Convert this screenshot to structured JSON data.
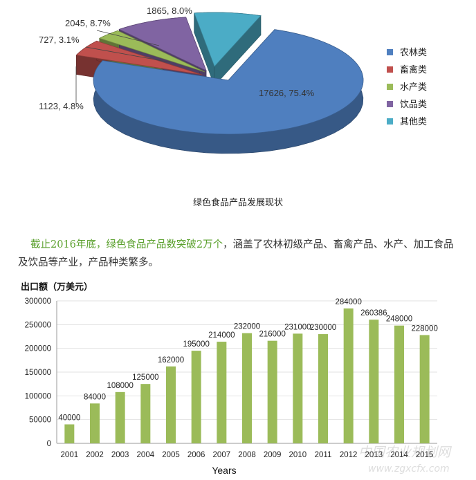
{
  "chart_data": [
    {
      "type": "pie",
      "title": "",
      "legend_position": "right",
      "slices": [
        {
          "name": "农林类",
          "value": 17626,
          "label": "17626, 75.4%",
          "color": "#4f7fbf"
        },
        {
          "name": "畜禽类",
          "value": 1123,
          "label": "1123, 4.8%",
          "color": "#c0504d"
        },
        {
          "name": "水产类",
          "value": 727,
          "label": "727, 3.1%",
          "color": "#9bbb59"
        },
        {
          "name": "饮品类",
          "value": 2045,
          "label": "2045, 8.7%",
          "color": "#8064a2"
        },
        {
          "name": "其他类",
          "value": 1865,
          "label": "1865, 8.0%",
          "color": "#4bacc6"
        }
      ]
    },
    {
      "type": "bar",
      "title": "",
      "ylabel": "出口额（万美元）",
      "xlabel": "Years",
      "ylim": [
        0,
        300000
      ],
      "yticks": [
        0,
        50000,
        100000,
        150000,
        200000,
        250000,
        300000
      ],
      "grid": true,
      "color": "#9bbb59",
      "categories": [
        "2001",
        "2002",
        "2003",
        "2004",
        "2005",
        "2006",
        "2007",
        "2008",
        "2009",
        "2010",
        "2011",
        "2012",
        "2013",
        "2014",
        "2015"
      ],
      "values": [
        40000,
        84000,
        108000,
        125000,
        162000,
        195000,
        214000,
        232000,
        216000,
        231000,
        230000,
        284000,
        260386,
        248000,
        228000
      ]
    }
  ],
  "caption": "绿色食品产品发展现状",
  "paragraph": {
    "highlight": "截止2016年底，绿色食品产品数突破2万个",
    "rest": "，涵盖了农林初级产品、畜禽产品、水产、加工食品及饮品等产业，产品种类繁多。"
  },
  "watermark": "中国农业规划网 www.zgxcfx.com"
}
